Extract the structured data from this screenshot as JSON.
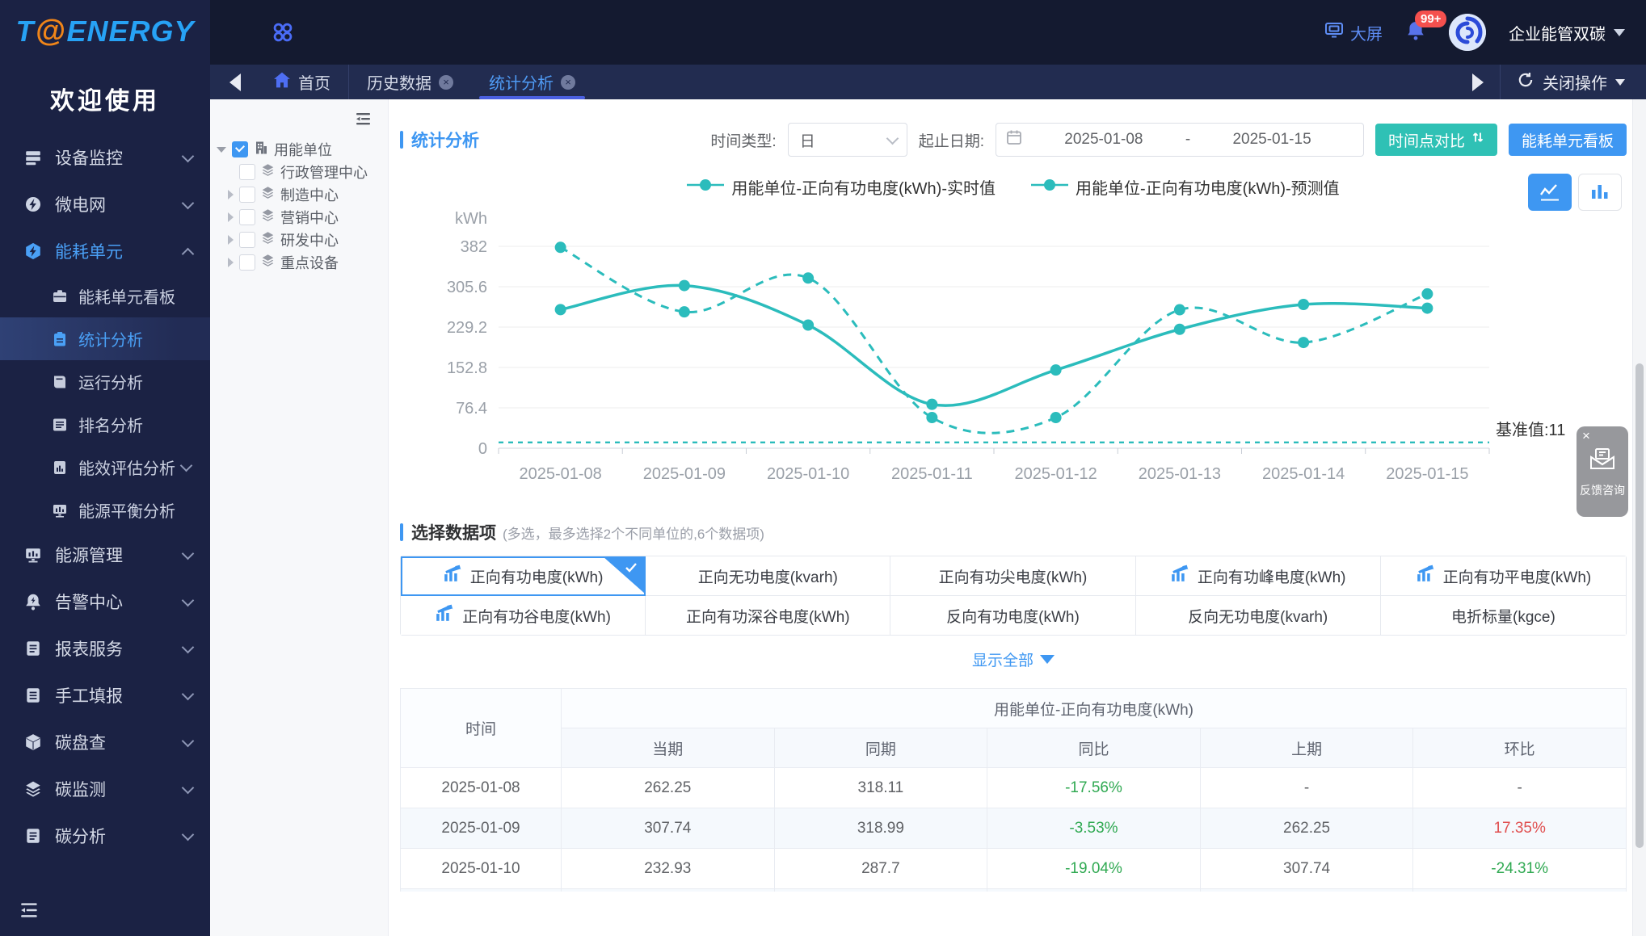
{
  "app": {
    "logo_t": "T",
    "logo_at": "@",
    "logo_rest": "ENERGY",
    "welcome": "欢迎使用",
    "big_screen": "大屏",
    "badge": "99+",
    "account": "企业能管双碳",
    "accent": "#3e97f2",
    "teal": "#2fc1b5",
    "sidebar_bg": "#1b2244",
    "header_bg": "#141a30"
  },
  "tabs": [
    {
      "label": "首页"
    },
    {
      "label": "历史数据",
      "closable": true
    },
    {
      "label": "统计分析",
      "closable": true,
      "active": true
    }
  ],
  "tabbar": {
    "close_action": "关闭操作"
  },
  "sidebar": {
    "items": [
      {
        "label": "设备监控",
        "icon": "device-monitor-icon",
        "expandable": true
      },
      {
        "label": "微电网",
        "icon": "microgrid-icon",
        "expandable": true
      },
      {
        "label": "能耗单元",
        "icon": "energy-unit-icon",
        "expandable": true,
        "expanded": true,
        "children": [
          {
            "label": "能耗单元看板",
            "icon": "dashboard-icon"
          },
          {
            "label": "统计分析",
            "icon": "clipboard-icon",
            "active": true
          },
          {
            "label": "运行分析",
            "icon": "book-icon"
          },
          {
            "label": "排名分析",
            "icon": "list-icon"
          },
          {
            "label": "能效评估分析",
            "icon": "chart-book-icon",
            "expandable": true
          },
          {
            "label": "能源平衡分析",
            "icon": "monitor-chart-icon"
          }
        ]
      },
      {
        "label": "能源管理",
        "icon": "monitor-chart-icon",
        "expandable": true
      },
      {
        "label": "告警中心",
        "icon": "alarm-bell-icon",
        "expandable": true
      },
      {
        "label": "报表服务",
        "icon": "report-icon",
        "expandable": true
      },
      {
        "label": "手工填报",
        "icon": "form-icon",
        "expandable": true
      },
      {
        "label": "碳盘查",
        "icon": "cube-icon",
        "expandable": true
      },
      {
        "label": "碳监测",
        "icon": "layers-icon",
        "expandable": true
      },
      {
        "label": "碳分析",
        "icon": "report-icon",
        "expandable": true
      }
    ]
  },
  "tree": {
    "root": "用能单位",
    "root_checked": true,
    "children": [
      "行政管理中心",
      "制造中心",
      "营销中心",
      "研发中心",
      "重点设备"
    ]
  },
  "panel": {
    "title": "统计分析",
    "time_type_label": "时间类型:",
    "time_type_value": "日",
    "date_label": "起止日期:",
    "date_start": "2025-01-08",
    "date_sep": "-",
    "date_end": "2025-01-15",
    "compare_btn": "时间点对比",
    "board_btn": "能耗单元看板"
  },
  "chart_data": {
    "type": "line",
    "unit": "kWh",
    "x": [
      "2025-01-08",
      "2025-01-09",
      "2025-01-10",
      "2025-01-11",
      "2025-01-12",
      "2025-01-13",
      "2025-01-14",
      "2025-01-15"
    ],
    "series": [
      {
        "name": "用能单位-正向有功电度(kWh)-实时值",
        "style": "solid",
        "values": [
          262.25,
          307.74,
          232.93,
          83,
          148,
          225,
          272,
          265
        ]
      },
      {
        "name": "用能单位-正向有功电度(kWh)-预测值",
        "style": "dashed",
        "values": [
          380,
          258,
          322,
          58,
          58,
          262,
          200,
          292
        ]
      }
    ],
    "baseline": {
      "value": 11,
      "label": "基准值:11"
    },
    "yticks": [
      0,
      76.4,
      152.8,
      229.2,
      305.6,
      382
    ],
    "ylim": [
      0,
      382
    ],
    "color": "#2bbcbc",
    "legend_position": "top",
    "grid": true
  },
  "selector": {
    "title": "选择数据项",
    "hint": "(多选，最多选择2个不同单位的,6个数据项)",
    "items": [
      {
        "label": "正向有功电度(kWh)",
        "icon": true,
        "selected": true
      },
      {
        "label": "正向无功电度(kvarh)"
      },
      {
        "label": "正向有功尖电度(kWh)"
      },
      {
        "label": "正向有功峰电度(kWh)",
        "icon": true
      },
      {
        "label": "正向有功平电度(kWh)",
        "icon": true
      },
      {
        "label": "正向有功谷电度(kWh)",
        "icon": true
      },
      {
        "label": "正向有功深谷电度(kWh)"
      },
      {
        "label": "反向有功电度(kWh)"
      },
      {
        "label": "反向无功电度(kvarh)"
      },
      {
        "label": "电折标量(kgce)"
      }
    ],
    "show_all": "显示全部"
  },
  "table": {
    "col_time": "时间",
    "group_header": "用能单位-正向有功电度(kWh)",
    "sub_headers": [
      "当期",
      "同期",
      "同比",
      "上期",
      "环比"
    ],
    "rows": [
      {
        "time": "2025-01-08",
        "cells": [
          {
            "v": "262.25"
          },
          {
            "v": "318.11"
          },
          {
            "v": "-17.56%",
            "c": "green"
          },
          {
            "v": "-"
          },
          {
            "v": "-"
          }
        ]
      },
      {
        "time": "2025-01-09",
        "cells": [
          {
            "v": "307.74"
          },
          {
            "v": "318.99"
          },
          {
            "v": "-3.53%",
            "c": "green"
          },
          {
            "v": "262.25"
          },
          {
            "v": "17.35%",
            "c": "red"
          }
        ]
      },
      {
        "time": "2025-01-10",
        "cells": [
          {
            "v": "232.93"
          },
          {
            "v": "287.7"
          },
          {
            "v": "-19.04%",
            "c": "green"
          },
          {
            "v": "307.74"
          },
          {
            "v": "-24.31%",
            "c": "green"
          }
        ]
      }
    ]
  },
  "feedback": {
    "label": "反馈咨询"
  }
}
